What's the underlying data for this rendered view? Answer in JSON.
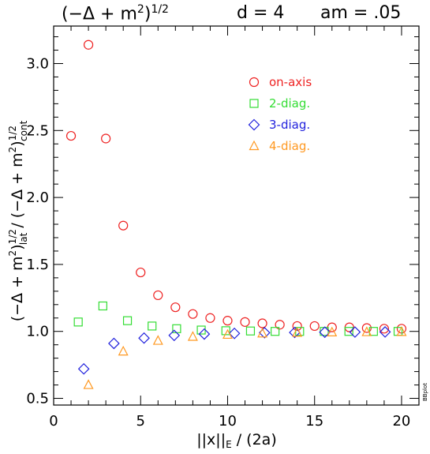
{
  "header": {
    "formula_base": "(−Δ + m",
    "formula_sup": "2",
    "formula_close": ")",
    "formula_exp": "1/2",
    "dimension": "d = 4",
    "mass": "am =  .05"
  },
  "chart_data": {
    "type": "scatter",
    "xlabel_parts": {
      "open": "||x||",
      "sub": "E",
      "rest": " / (2a)"
    },
    "ylabel_parts": {
      "num": "(−Δ + m",
      "num_sup": "2",
      "num_close": ")",
      "num_exp": "1/2",
      "num_sub": "lat",
      "sep": " / ",
      "den": "(−Δ + m",
      "den_sup": "2",
      "den_close": ")",
      "den_exp": "1/2",
      "den_sub": "cont"
    },
    "xlim": [
      0,
      21
    ],
    "ylim": [
      0.45,
      3.28
    ],
    "x_ticks": [
      0,
      5,
      10,
      15,
      20
    ],
    "x_tick_labels": [
      "0",
      "5",
      "10",
      "15",
      "20"
    ],
    "y_ticks": [
      0.5,
      1.0,
      1.5,
      2.0,
      2.5,
      3.0
    ],
    "y_tick_labels": [
      "0.5",
      "1.0",
      "1.5",
      "2.0",
      "2.5",
      "3.0"
    ],
    "grid": false,
    "legend_position": "top-right",
    "corner_label": "BBplot",
    "series": [
      {
        "name": "on-axis",
        "marker": "circle",
        "color": "#ee2222",
        "points": [
          [
            1,
            2.46
          ],
          [
            2,
            3.14
          ],
          [
            3,
            2.44
          ],
          [
            4,
            1.79
          ],
          [
            5,
            1.44
          ],
          [
            6,
            1.27
          ],
          [
            7,
            1.18
          ],
          [
            8,
            1.13
          ],
          [
            9,
            1.1
          ],
          [
            10,
            1.08
          ],
          [
            11,
            1.07
          ],
          [
            12,
            1.06
          ],
          [
            13,
            1.05
          ],
          [
            14,
            1.04
          ],
          [
            15,
            1.04
          ],
          [
            16,
            1.03
          ],
          [
            17,
            1.03
          ],
          [
            18,
            1.025
          ],
          [
            19,
            1.02
          ],
          [
            20,
            1.02
          ]
        ]
      },
      {
        "name": "2-diag.",
        "marker": "square",
        "color": "#33dd33",
        "points": [
          [
            1.414,
            1.07
          ],
          [
            2.828,
            1.19
          ],
          [
            4.243,
            1.08
          ],
          [
            5.657,
            1.04
          ],
          [
            7.071,
            1.02
          ],
          [
            8.485,
            1.01
          ],
          [
            9.899,
            1.005
          ],
          [
            11.314,
            1.003
          ],
          [
            12.728,
            1.0
          ],
          [
            14.142,
            1.0
          ],
          [
            15.556,
            1.0
          ],
          [
            16.971,
            1.0
          ],
          [
            18.385,
            1.0
          ],
          [
            19.799,
            1.0
          ]
        ]
      },
      {
        "name": "3-diag.",
        "marker": "diamond",
        "color": "#2222dd",
        "points": [
          [
            1.732,
            0.72
          ],
          [
            3.464,
            0.91
          ],
          [
            5.196,
            0.95
          ],
          [
            6.928,
            0.97
          ],
          [
            8.66,
            0.98
          ],
          [
            10.392,
            0.985
          ],
          [
            12.124,
            0.99
          ],
          [
            13.856,
            0.992
          ],
          [
            15.588,
            0.994
          ],
          [
            17.321,
            0.995
          ],
          [
            19.053,
            0.996
          ]
        ]
      },
      {
        "name": "4-diag.",
        "marker": "triangle",
        "color": "#ff9922",
        "points": [
          [
            2,
            0.6
          ],
          [
            4,
            0.85
          ],
          [
            6,
            0.93
          ],
          [
            8,
            0.96
          ],
          [
            10,
            0.975
          ],
          [
            12,
            0.985
          ],
          [
            14,
            0.99
          ],
          [
            16,
            0.993
          ],
          [
            18,
            0.995
          ],
          [
            20,
            0.996
          ]
        ]
      }
    ]
  }
}
